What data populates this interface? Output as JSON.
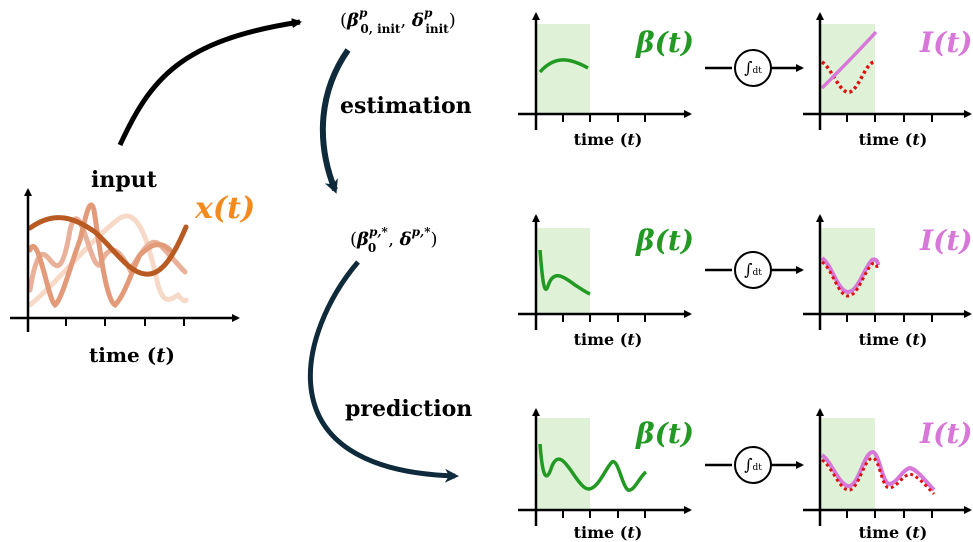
{
  "input_panel": {
    "title": "input",
    "signal_label": "x(t)",
    "x_axis_label": "time",
    "x_axis_var": "t",
    "colors": {
      "dark": "#b85a22",
      "medium": "#e8a07d",
      "light": "#f7d9c8",
      "signal_label": "#f28a1e"
    }
  },
  "flow": {
    "init_params": {
      "beta": "β",
      "beta_sup": "p",
      "beta_sub": "0, init",
      "delta": "δ",
      "delta_sup": "p",
      "delta_sub": "init"
    },
    "estimation_label": "estimation",
    "estimated_params": {
      "beta": "β",
      "beta_sup": "p,*",
      "beta_sub": "0",
      "delta": "δ",
      "delta_sup": "p,*"
    },
    "prediction_label": "prediction",
    "arrow_color": "#0f2a3a"
  },
  "rows": [
    {
      "beta_label": "β(t)",
      "integrator_label": "dt",
      "i_label": "I(t)",
      "x_axis_label": "time",
      "x_axis_var": "t",
      "x_axis_label_right": "time",
      "x_axis_var_right": "t"
    },
    {
      "beta_label": "β(t)",
      "integrator_label": "dt",
      "i_label": "I(t)",
      "x_axis_label": "time",
      "x_axis_var": "t",
      "x_axis_label_right": "time",
      "x_axis_var_right": "t"
    },
    {
      "beta_label": "β(t)",
      "integrator_label": "dt",
      "i_label": "I(t)",
      "x_axis_label": "time",
      "x_axis_var": "t",
      "x_axis_label_right": "time",
      "x_axis_var_right": "t"
    }
  ],
  "colors": {
    "beta": "#229922",
    "infected": "#d777d7",
    "observed_dots": "#dd1111",
    "window_fill": "#dff2d8"
  }
}
